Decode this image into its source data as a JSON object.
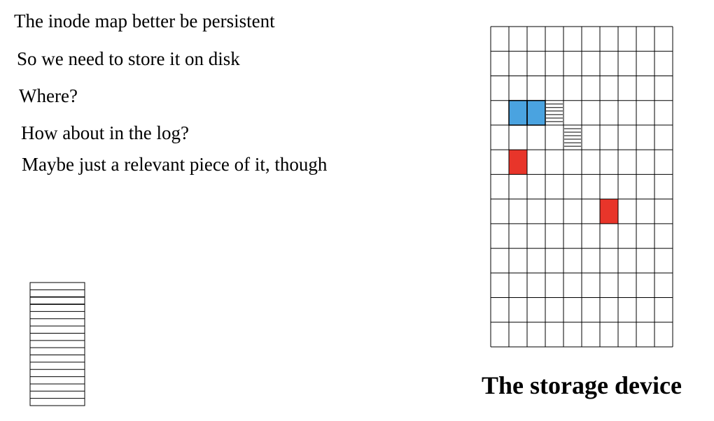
{
  "text_lines": [
    "The inode map better be persistent",
    "So we need to store it on disk",
    "Where?",
    "How about in the log?",
    "Maybe just a relevant piece of it, though"
  ],
  "storage_device": {
    "label": "The storage device",
    "columns": 10,
    "rows": 13,
    "blocks": [
      {
        "row": 3,
        "col": 1,
        "kind": "inode",
        "color": "#4aa3e0"
      },
      {
        "row": 3,
        "col": 2,
        "kind": "inode",
        "color": "#4aa3e0"
      },
      {
        "row": 3,
        "col": 3,
        "kind": "imap-piece"
      },
      {
        "row": 4,
        "col": 4,
        "kind": "imap-piece"
      },
      {
        "row": 5,
        "col": 1,
        "kind": "data",
        "color": "#e8352a"
      },
      {
        "row": 7,
        "col": 6,
        "kind": "data",
        "color": "#e8352a"
      }
    ]
  },
  "inode_map": {
    "entries": 17
  },
  "colors": {
    "inode_block": "#4aa3e0",
    "data_block": "#e8352a",
    "grid_line": "#000000"
  }
}
